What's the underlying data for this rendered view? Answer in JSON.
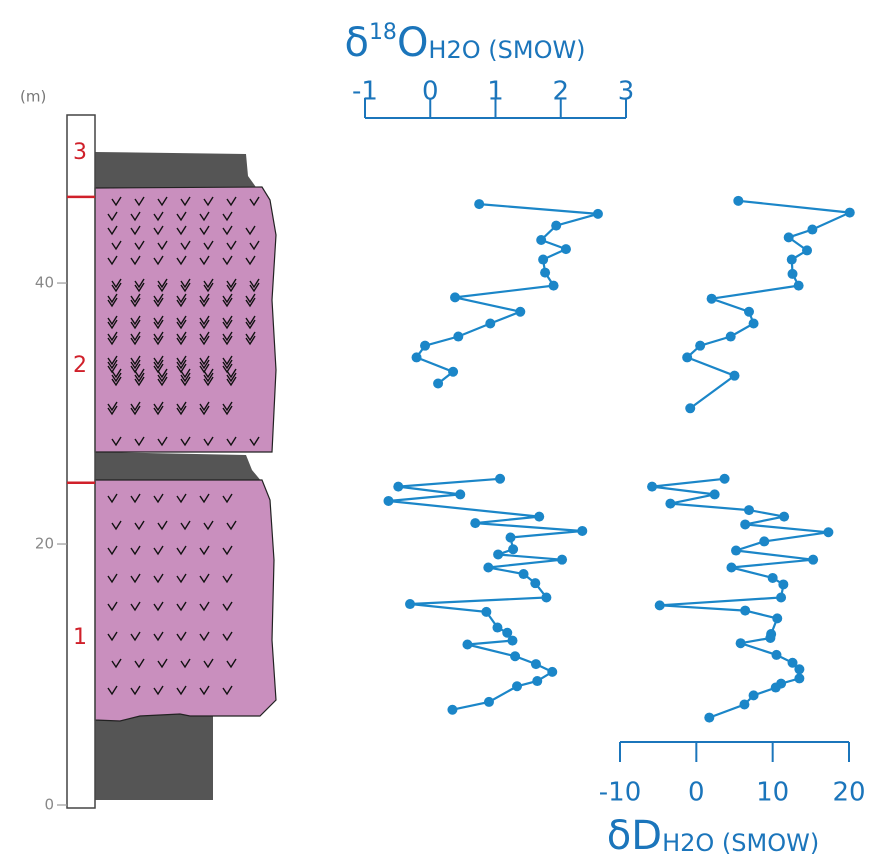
{
  "chart_data": {
    "type": "line",
    "depth_label": "(m)",
    "ylim": [
      0,
      53
    ],
    "yticks": [
      0,
      20,
      40
    ],
    "units": [
      "1",
      "2",
      "3"
    ],
    "unit_boundaries": [
      24.7,
      46.6
    ],
    "color": "#1b86c8",
    "panels": [
      {
        "title": {
          "symbol": "δ",
          "superscript": "18",
          "element": "O",
          "subscript": "H2O (SMOW)"
        },
        "axis": "top",
        "xlim": [
          -1,
          3
        ],
        "xticks": [
          -1,
          0,
          1,
          2,
          3
        ],
        "depth": [
          46.05,
          45.3,
          44.4,
          43.3,
          42.6,
          41.8,
          40.8,
          39.8,
          38.9,
          37.8,
          36.9,
          35.9,
          35.2,
          34.3,
          33.2,
          32.3,
          null,
          25.0,
          24.4,
          23.8,
          23.3,
          22.1,
          21.6,
          21.0,
          20.5,
          19.6,
          19.2,
          18.8,
          18.2,
          17.7,
          17.0,
          15.9,
          15.4,
          14.8,
          13.6,
          13.2,
          12.6,
          12.3,
          11.4,
          10.8,
          10.2,
          9.5,
          9.1,
          7.9,
          7.3
        ],
        "values": [
          0.75,
          2.57,
          1.93,
          1.7,
          2.08,
          1.73,
          1.76,
          1.89,
          0.38,
          1.38,
          0.92,
          0.43,
          -0.08,
          -0.21,
          0.35,
          0.12,
          null,
          1.07,
          -0.49,
          0.46,
          -0.64,
          1.67,
          0.69,
          2.33,
          1.23,
          1.27,
          1.04,
          2.02,
          0.89,
          1.43,
          1.61,
          1.78,
          -0.31,
          0.86,
          1.03,
          1.18,
          1.26,
          0.57,
          1.3,
          1.62,
          1.87,
          1.64,
          1.33,
          0.9,
          0.34
        ]
      },
      {
        "title": {
          "symbol": "δ",
          "element": "D",
          "subscript": "H2O (SMOW)"
        },
        "axis": "bottom",
        "xlim": [
          -10,
          20
        ],
        "xticks": [
          -10,
          0,
          10,
          20
        ],
        "depth": [
          46.3,
          45.4,
          44.1,
          43.5,
          42.5,
          41.8,
          40.7,
          39.8,
          38.8,
          37.8,
          36.9,
          35.9,
          35.2,
          34.3,
          32.9,
          30.4,
          null,
          25.0,
          24.4,
          23.8,
          23.1,
          22.6,
          22.1,
          21.5,
          20.9,
          20.2,
          19.5,
          18.8,
          18.2,
          17.4,
          16.9,
          15.9,
          15.3,
          14.9,
          14.3,
          13.1,
          12.8,
          12.4,
          11.5,
          10.9,
          10.4,
          9.7,
          9.3,
          9.0,
          8.4,
          7.7,
          6.7
        ],
        "values": [
          5.5,
          20.1,
          15.2,
          12.1,
          14.5,
          12.5,
          12.6,
          13.4,
          2.0,
          6.9,
          7.5,
          4.5,
          0.5,
          -1.2,
          5.0,
          -0.8,
          null,
          3.7,
          -5.8,
          2.4,
          -3.4,
          6.9,
          11.5,
          6.4,
          17.3,
          8.9,
          5.2,
          15.3,
          4.6,
          10.0,
          11.4,
          11.1,
          -4.8,
          6.4,
          10.6,
          9.8,
          9.7,
          5.8,
          10.5,
          12.6,
          13.5,
          13.5,
          11.1,
          10.4,
          7.5,
          6.3,
          1.7
        ]
      }
    ]
  }
}
